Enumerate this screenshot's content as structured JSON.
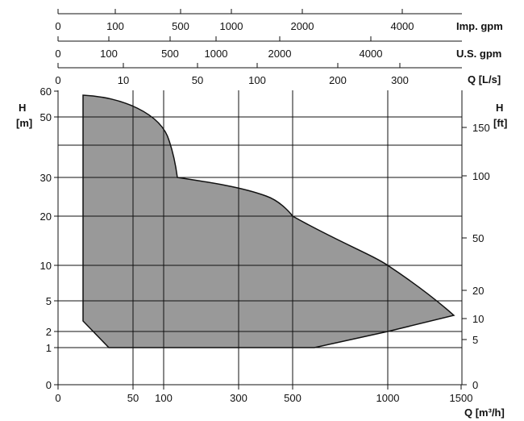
{
  "chart_data": {
    "type": "area",
    "title": "",
    "scale": "nonlinear (tick labels placed per original artwork)",
    "top_axes": [
      {
        "unit": "Imp. gpm",
        "ticks": [
          "0",
          "100",
          "500",
          "1000",
          "2000",
          "4000"
        ],
        "values": [
          0,
          100,
          500,
          1000,
          2000,
          4000
        ]
      },
      {
        "unit": "U.S. gpm",
        "ticks": [
          "0",
          "100",
          "500",
          "1000",
          "2000",
          "4000"
        ],
        "values": [
          0,
          100,
          500,
          1000,
          2000,
          4000
        ]
      },
      {
        "unit": "Q [L/s]",
        "ticks": [
          "0",
          "10",
          "50",
          "100",
          "200",
          "300"
        ],
        "values": [
          0,
          10,
          50,
          100,
          200,
          300
        ]
      }
    ],
    "x_axis": {
      "unit": "Q [m³/h]",
      "ticks": [
        "0",
        "50",
        "100",
        "300",
        "500",
        "1000",
        "1500"
      ],
      "values": [
        0,
        50,
        100,
        300,
        500,
        1000,
        1500
      ]
    },
    "left_axis": {
      "unit_line1": "H",
      "unit_line2": "[m]",
      "ticks": [
        "0",
        "1",
        "2",
        "5",
        "10",
        "20",
        "30",
        "50",
        "60"
      ],
      "values": [
        0,
        1,
        2,
        5,
        10,
        20,
        30,
        50,
        60
      ]
    },
    "right_axis": {
      "unit_line1": "H",
      "unit_line2": "[ft]",
      "ticks": [
        "0",
        "5",
        "10",
        "20",
        "50",
        "100",
        "150"
      ],
      "values": [
        0,
        5,
        10,
        20,
        50,
        100,
        150
      ]
    },
    "grid": true,
    "fill_color": "#999999",
    "envelope": [
      {
        "q": 15,
        "h": 58
      },
      {
        "q": 45,
        "h": 55
      },
      {
        "q": 90,
        "h": 45
      },
      {
        "q": 118,
        "h": 30
      },
      {
        "q": 300,
        "h": 26
      },
      {
        "q": 500,
        "h": 20
      },
      {
        "q": 1000,
        "h": 10
      },
      {
        "q": 1450,
        "h": 2.6
      },
      {
        "q": 1000,
        "h": 1.9
      },
      {
        "q": 600,
        "h": 1
      },
      {
        "q": 35,
        "h": 1
      },
      {
        "q": 15,
        "h": 2.5
      }
    ]
  }
}
